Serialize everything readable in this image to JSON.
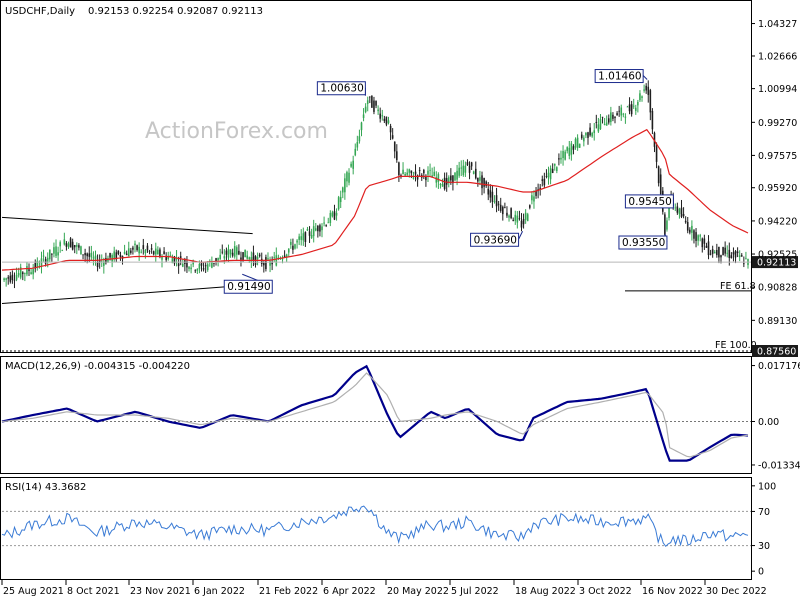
{
  "window": {
    "symbol_title": "USDCHF,Daily",
    "ohlc": "0.92153 0.92254 0.92087 0.92113",
    "watermark": "ActionForex.com"
  },
  "colors": {
    "up_bar": "#34a653",
    "down_bar": "#1f1f1f",
    "ma_line": "#e02020",
    "macd_line": "#00008b",
    "signal_line": "#b0b0b0",
    "rsi_line": "#3a7bd5",
    "annotation_box": "#1a2a8c",
    "channel_line": "#000000"
  },
  "chart_data": [
    {
      "type": "candlestick",
      "name": "price",
      "ylim": [
        0.8756,
        1.0543
      ],
      "y_ticks": [
        1.04327,
        1.02666,
        1.00994,
        0.9927,
        0.97575,
        0.9592,
        0.9422,
        0.92525,
        0.90828,
        0.8913
      ],
      "y_tick_labels": [
        "1.04327",
        "1.02666",
        "1.00994",
        "0.99270",
        "0.97575",
        "0.95920",
        "0.94220",
        "0.92525",
        "0.90828",
        "0.89130"
      ],
      "current_price": "0.92113",
      "current_value": 0.92113,
      "fe_levels": [
        {
          "label": "FE 61.8",
          "value": 0.9064
        },
        {
          "label": "FE 100.0",
          "value": 0.8756,
          "value_label": "0.87560"
        }
      ],
      "annotations": [
        {
          "label": "1.00630",
          "value": 1.0063,
          "date": "2022-04-27"
        },
        {
          "label": "1.01460",
          "value": 1.0146,
          "date": "2022-11-03"
        },
        {
          "label": "0.93690",
          "value": 0.9369,
          "date": "2022-08-11"
        },
        {
          "label": "0.95450",
          "value": 0.9545,
          "date": "2022-11-18"
        },
        {
          "label": "0.93550",
          "value": 0.9355,
          "date": "2022-11-15"
        },
        {
          "label": "0.91490",
          "value": 0.9149,
          "date": "2022-02-03"
        }
      ],
      "channel": {
        "upper": [
          [
            "2021-08-25",
            0.944
          ],
          [
            "2022-02-10",
            0.9357
          ]
        ],
        "lower": [
          [
            "2021-08-25",
            0.8999
          ],
          [
            "2022-02-10",
            0.9095
          ]
        ]
      },
      "x_dates": [
        "2021-08-25",
        "2021-09-15",
        "2021-10-08",
        "2021-10-28",
        "2021-11-23",
        "2021-12-15",
        "2022-01-06",
        "2022-01-27",
        "2022-02-21",
        "2022-03-15",
        "2022-04-06",
        "2022-04-20",
        "2022-04-28",
        "2022-05-12",
        "2022-05-20",
        "2022-06-10",
        "2022-06-20",
        "2022-07-05",
        "2022-07-25",
        "2022-08-11",
        "2022-08-18",
        "2022-09-10",
        "2022-10-03",
        "2022-10-24",
        "2022-11-03",
        "2022-11-15",
        "2022-11-18",
        "2022-12-01",
        "2022-12-15",
        "2022-12-30",
        "2023-01-10"
      ],
      "close": [
        0.912,
        0.918,
        0.932,
        0.921,
        0.928,
        0.924,
        0.918,
        0.927,
        0.92,
        0.933,
        0.945,
        0.977,
        1.005,
        0.993,
        0.966,
        0.966,
        0.961,
        0.971,
        0.951,
        0.94,
        0.956,
        0.978,
        0.993,
        1.0,
        1.012,
        0.937,
        0.954,
        0.939,
        0.927,
        0.925,
        0.921
      ],
      "ma": [
        0.917,
        0.918,
        0.922,
        0.922,
        0.924,
        0.924,
        0.921,
        0.922,
        0.922,
        0.925,
        0.93,
        0.945,
        0.96,
        0.963,
        0.965,
        0.965,
        0.962,
        0.962,
        0.96,
        0.957,
        0.957,
        0.963,
        0.975,
        0.985,
        0.989,
        0.975,
        0.966,
        0.958,
        0.948,
        0.94,
        0.936
      ]
    },
    {
      "type": "line",
      "name": "macd",
      "title": "MACD(12,26,9) -0.004315 -0.004220",
      "ylim": [
        -0.0155,
        0.0195
      ],
      "y_tick_labels": [
        "0.017176",
        "0.00",
        "-0.01334"
      ],
      "y_ticks": [
        0.017176,
        0.0,
        -0.01334
      ],
      "series": [
        {
          "values": [
            0.0,
            0.002,
            0.004,
            0.0,
            0.003,
            0.0,
            -0.002,
            0.002,
            0.0,
            0.005,
            0.008,
            0.015,
            0.017,
            0.002,
            -0.005,
            0.003,
            0.001,
            0.004,
            -0.004,
            -0.006,
            0.001,
            0.006,
            0.007,
            0.009,
            0.01,
            -0.008,
            -0.012,
            -0.012,
            -0.008,
            -0.004,
            -0.0043
          ]
        },
        {
          "values": [
            0.0,
            0.001,
            0.003,
            0.002,
            0.002,
            0.001,
            -0.001,
            0.001,
            0.0,
            0.003,
            0.006,
            0.011,
            0.015,
            0.008,
            0.0,
            0.001,
            0.002,
            0.003,
            0.0,
            -0.004,
            -0.001,
            0.004,
            0.006,
            0.008,
            0.009,
            0.002,
            -0.008,
            -0.011,
            -0.009,
            -0.005,
            -0.0042
          ]
        }
      ]
    },
    {
      "type": "line",
      "name": "rsi",
      "title": "RSI(14) 43.3682",
      "ylim": [
        0,
        100
      ],
      "y_tick_labels": [
        "100",
        "70",
        "30",
        "0"
      ],
      "y_ticks": [
        100,
        70,
        30,
        0
      ],
      "series": [
        {
          "values": [
            40,
            55,
            62,
            45,
            58,
            52,
            42,
            50,
            48,
            58,
            65,
            75,
            78,
            45,
            38,
            55,
            52,
            58,
            42,
            40,
            55,
            62,
            58,
            60,
            62,
            28,
            38,
            35,
            45,
            40,
            43.37
          ]
        }
      ]
    }
  ],
  "x_axis": {
    "tick_labels": [
      "25 Aug 2021",
      "8 Oct 2021",
      "23 Nov 2021",
      "6 Jan 2022",
      "21 Feb 2022",
      "6 Apr 2022",
      "20 May 2022",
      "5 Jul 2022",
      "18 Aug 2022",
      "3 Oct 2022",
      "16 Nov 2022",
      "30 Dec 2022"
    ]
  }
}
